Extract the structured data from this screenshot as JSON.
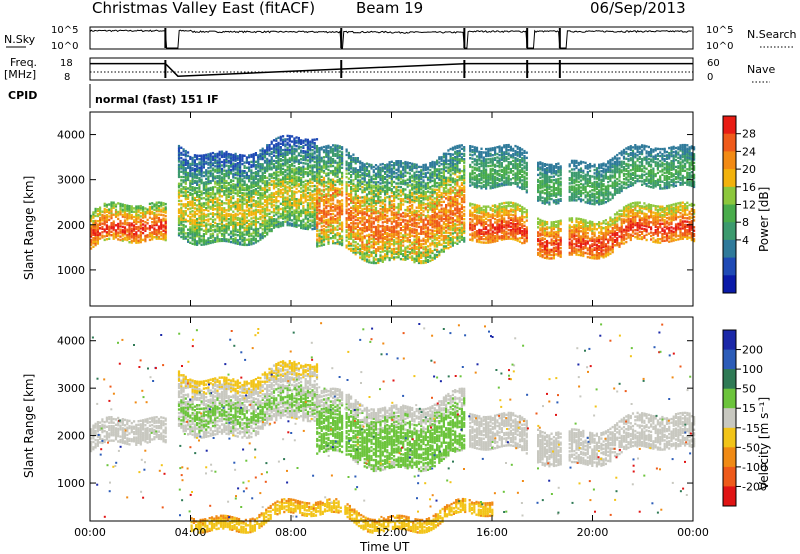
{
  "header": {
    "station": "Christmas Valley East (fitACF)",
    "beam": "Beam 19",
    "date": "06/Sep/2013"
  },
  "params": {
    "nsky_label": "N.Sky",
    "nsky_ticks": [
      "10^5",
      "10^0"
    ],
    "nsearch_label": "N.Search",
    "nsearch_ticks": [
      "10^5",
      "10^0"
    ],
    "freq_label_1": "Freq.",
    "freq_label_2": "[MHz]",
    "freq_ticks": [
      "18",
      "8"
    ],
    "nave_label": "Nave",
    "nave_ticks": [
      "60",
      "0"
    ],
    "cpid_label": "CPID",
    "cpid_value": "normal (fast) 151 IF"
  },
  "chart_data": [
    {
      "type": "line",
      "panel": "sounding-parameters",
      "series": [
        {
          "name": "N.Sky",
          "x": [
            "00:00",
            "03:00",
            "03:30",
            "04:00",
            "08:00",
            "12:00",
            "15:00",
            "16:00",
            "20:00",
            "24:00"
          ],
          "values": [
            30000,
            25000,
            1,
            20000,
            10000,
            8000,
            15000,
            12000,
            10000,
            20000
          ]
        },
        {
          "name": "Freq.",
          "x": [
            "00:00",
            "03:00",
            "03:30",
            "15:00",
            "24:00"
          ],
          "values": [
            16,
            16,
            9,
            16,
            16
          ]
        },
        {
          "name": "Nave",
          "x": [
            "00:00",
            "03:00",
            "03:30",
            "15:00",
            "24:00"
          ],
          "values": [
            0,
            0,
            0,
            0,
            0
          ]
        }
      ]
    },
    {
      "type": "heatmap",
      "panel": "power",
      "xlabel": "",
      "ylabel": "Slant Range [km]",
      "x_range": [
        "00:00",
        "24:00"
      ],
      "ylim": [
        200,
        4500
      ],
      "yticks": [
        "1000",
        "2000",
        "3000",
        "4000"
      ],
      "colorbar_label": "Power [dB]",
      "colorbar_ticks": [
        "28",
        "24",
        "20",
        "16",
        "12",
        "8",
        "4"
      ],
      "colorbar_range": [
        0,
        30
      ],
      "colors": [
        "#0a1aa8",
        "#1f4ab5",
        "#2f7a9a",
        "#3c9a6e",
        "#49ac4b",
        "#8cc73c",
        "#f2b20c",
        "#f28a14",
        "#ef5a1a",
        "#e81c14"
      ],
      "bands": [
        {
          "from": "00:00",
          "to": "03:00",
          "range_km": [
            1500,
            2300
          ],
          "power_db": [
            14,
            28
          ]
        },
        {
          "from": "03:30",
          "to": "09:00",
          "range_km": [
            1800,
            3800
          ],
          "power_db": [
            4,
            20
          ]
        },
        {
          "from": "09:00",
          "to": "15:00",
          "range_km": [
            1400,
            3600
          ],
          "power_db": [
            6,
            26
          ]
        },
        {
          "from": "15:00",
          "to": "24:00",
          "range_km": [
            1500,
            2300
          ],
          "power_db": [
            16,
            28
          ]
        },
        {
          "from": "15:00",
          "to": "24:00",
          "range_km": [
            2700,
            3600
          ],
          "power_db": [
            6,
            14
          ]
        }
      ]
    },
    {
      "type": "heatmap",
      "panel": "velocity",
      "xlabel": "Time UT",
      "ylabel": "Slant Range [km]",
      "xticks": [
        "00:00",
        "04:00",
        "08:00",
        "12:00",
        "16:00",
        "20:00",
        "00:00"
      ],
      "ylim": [
        200,
        4500
      ],
      "yticks": [
        "1000",
        "2000",
        "3000",
        "4000"
      ],
      "colorbar_label": "Velocity [m s⁻¹]",
      "colorbar_ticks": [
        "200",
        "100",
        "50",
        "15",
        "-15",
        "-50",
        "-100",
        "-200"
      ],
      "colorbar_range": [
        -250,
        250
      ],
      "colors": [
        "#1b28a8",
        "#2c5cb8",
        "#2f7a55",
        "#6cc43c",
        "#c8c8c0",
        "#f2c418",
        "#f08a14",
        "#ee5a1a",
        "#e01414"
      ],
      "bands": [
        {
          "from": "00:00",
          "to": "03:00",
          "range_km": [
            1700,
            2200
          ],
          "velocity": [
            -15,
            15
          ]
        },
        {
          "from": "03:30",
          "to": "09:00",
          "range_km": [
            2200,
            3400
          ],
          "velocity": [
            -50,
            50
          ]
        },
        {
          "from": "09:00",
          "to": "15:00",
          "range_km": [
            1500,
            2800
          ],
          "velocity": [
            15,
            50
          ]
        },
        {
          "from": "15:00",
          "to": "24:00",
          "range_km": [
            1600,
            2300
          ],
          "velocity": [
            -15,
            15
          ]
        },
        {
          "from": "04:00",
          "to": "16:00",
          "range_km": [
            200,
            500
          ],
          "velocity": [
            -100,
            -50
          ]
        }
      ]
    }
  ]
}
